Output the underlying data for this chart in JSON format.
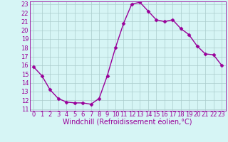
{
  "x": [
    0,
    1,
    2,
    3,
    4,
    5,
    6,
    7,
    8,
    9,
    10,
    11,
    12,
    13,
    14,
    15,
    16,
    17,
    18,
    19,
    20,
    21,
    22,
    23
  ],
  "y": [
    15.8,
    14.8,
    13.2,
    12.2,
    11.8,
    11.7,
    11.7,
    11.55,
    12.2,
    14.8,
    18.0,
    20.8,
    23.0,
    23.2,
    22.2,
    21.2,
    21.0,
    21.2,
    20.2,
    19.5,
    18.2,
    17.3,
    17.2,
    16.0
  ],
  "line_color": "#990099",
  "marker": "D",
  "marker_size": 2.5,
  "line_width": 1.0,
  "bg_color": "#d6f5f5",
  "grid_color": "#aacccc",
  "xlabel": "Windchill (Refroidissement éolien,°C)",
  "xlabel_color": "#990099",
  "xlabel_fontsize": 7,
  "tick_color": "#990099",
  "tick_fontsize": 6,
  "ytick_min": 11,
  "ytick_max": 23,
  "xtick_min": 0,
  "xtick_max": 23
}
